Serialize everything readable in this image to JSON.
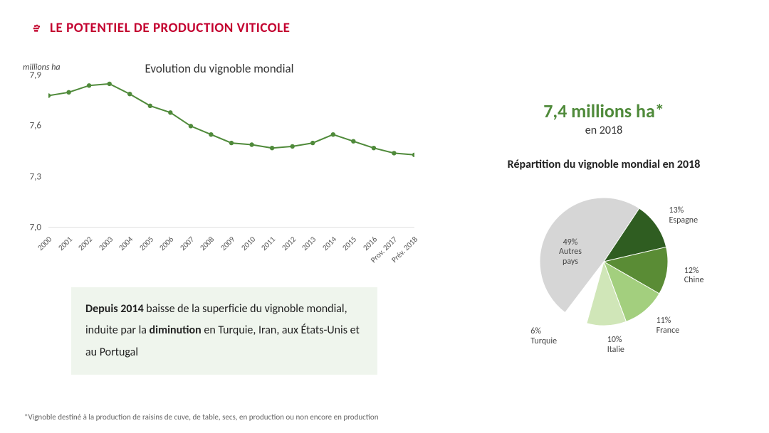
{
  "header": {
    "icon_color": "#c3002f",
    "title": "LE POTENTIEL DE PRODUCTION VITICOLE",
    "title_color": "#c3002f"
  },
  "line_chart": {
    "type": "line",
    "title": "Evolution du vignoble mondial",
    "y_unit_label": "millions ha",
    "x_labels": [
      "2000",
      "2001",
      "2002",
      "2003",
      "2004",
      "2005",
      "2006",
      "2007",
      "2008",
      "2009",
      "2010",
      "2011",
      "2012",
      "2013",
      "2014",
      "2015",
      "2016",
      "Prov. 2017",
      "Prév. 2018"
    ],
    "values": [
      7.78,
      7.8,
      7.84,
      7.85,
      7.79,
      7.72,
      7.68,
      7.6,
      7.55,
      7.5,
      7.49,
      7.47,
      7.48,
      7.5,
      7.55,
      7.51,
      7.47,
      7.44,
      7.43
    ],
    "ylim": [
      7.0,
      7.9
    ],
    "yticks": [
      7.0,
      7.3,
      7.6,
      7.9
    ],
    "ytick_labels": [
      "7,0",
      "7,3",
      "7,6",
      "7,9"
    ],
    "line_color": "#4f8a3a",
    "marker_color": "#4f8a3a",
    "marker_radius": 3.2,
    "line_width": 2,
    "axis_color": "#bfbfbf",
    "background_color": "#ffffff",
    "title_fontsize": 17,
    "label_fontsize": 12
  },
  "callout": {
    "html": "<b>Depuis 2014</b> baisse de la superficie du vignoble mondial, induite par la <b>diminution</b> en Turquie, Iran, aux États-Unis et au Portugal",
    "background": "#eff5ed",
    "fontsize": 16
  },
  "headline": {
    "value": "7,4 millions ha*",
    "value_color": "#4f8a3a",
    "sub": "en 2018"
  },
  "pie_chart": {
    "type": "pie",
    "title": "Répartition du vignoble mondial en 2018",
    "slices": [
      {
        "label": "Espagne",
        "pct": 13,
        "color": "#2f5d21",
        "label_text": "13%\nEspagne"
      },
      {
        "label": "Chine",
        "pct": 12,
        "color": "#5a8c35",
        "label_text": "12%\nChine"
      },
      {
        "label": "France",
        "pct": 11,
        "color": "#a3cf7e",
        "label_text": "11%\nFrance"
      },
      {
        "label": "Italie",
        "pct": 10,
        "color": "#d0e6b8",
        "label_text": "10%\nItalie"
      },
      {
        "label": "Turquie",
        "pct": 6,
        "color": "#ffffff",
        "label_text": "6%\nTurquie"
      },
      {
        "label": "Autres pays",
        "pct": 49,
        "color": "#d6d6d6",
        "label_text": "49%\nAutres\npays"
      }
    ],
    "start_angle_deg": -60,
    "stroke": "#ffffff",
    "stroke_width": 1,
    "radius": 90,
    "label_fontsize": 12,
    "title_fontsize": 16
  },
  "footnote": "*Vignoble destiné à la production de raisins de cuve, de table, secs, en production ou non encore en production"
}
